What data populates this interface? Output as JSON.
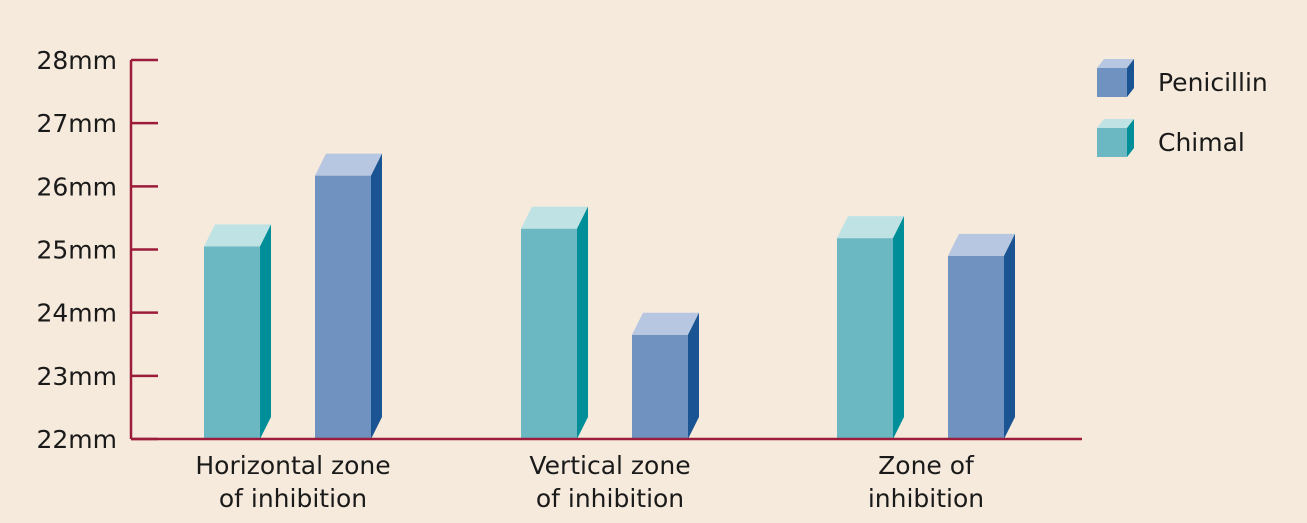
{
  "chart_data": {
    "type": "bar",
    "title": "",
    "xlabel": "",
    "ylabel": "",
    "categories": [
      [
        "Horizontal zone",
        "of inhibition"
      ],
      [
        "Vertical zone",
        "of inhibition"
      ],
      [
        "Zone of",
        "inhibition"
      ]
    ],
    "series": [
      {
        "name": "Chimal",
        "values": [
          25.05,
          25.33,
          25.18
        ]
      },
      {
        "name": "Penicillin",
        "values": [
          26.17,
          23.65,
          24.9
        ]
      }
    ],
    "bar_order": [
      [
        "Chimal",
        "Penicillin"
      ],
      [
        "Chimal",
        "Penicillin"
      ],
      [
        "Chimal",
        "Penicillin"
      ]
    ],
    "ylim": [
      22,
      28
    ],
    "yticks": [
      22,
      23,
      24,
      25,
      26,
      27,
      28
    ],
    "ytick_labels": [
      "22mm",
      "23mm",
      "24mm",
      "25mm",
      "26mm",
      "27mm",
      "28mm"
    ],
    "legend": {
      "position": "top-right",
      "entries": [
        "Penicillin",
        "Chimal"
      ]
    },
    "grid": false,
    "colors": {
      "background": "#f5eadb",
      "axis": "#9c1d3b",
      "Chimal": {
        "front": "#6bb8c3",
        "top": "#bfe3e5",
        "side": "#008f99"
      },
      "Penicillin": {
        "front": "#6f92c0",
        "top": "#b7c6e1",
        "side": "#1a5492"
      }
    }
  }
}
